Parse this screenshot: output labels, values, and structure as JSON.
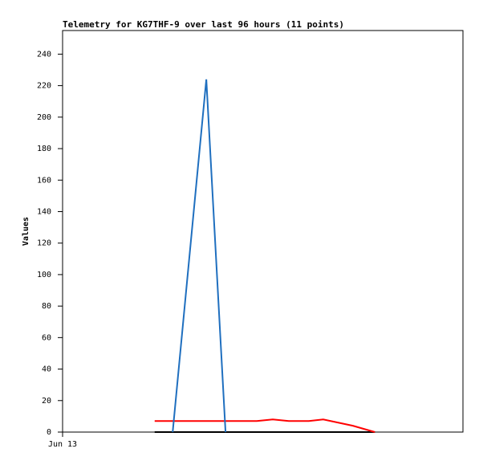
{
  "chart_data": {
    "type": "line",
    "title": "Telemetry for KG7THF-9 over last 96 hours (11 points)",
    "y_label": "Values",
    "x": [
      23.0,
      27.5,
      35.9,
      40.7,
      48.5,
      52.5,
      56.5,
      61.5,
      65.1,
      72.5,
      78.0
    ],
    "xlim": [
      0,
      100
    ],
    "xticks": [
      {
        "value": 0,
        "label": "Jun 13"
      }
    ],
    "ylim": [
      0,
      255
    ],
    "yticks": [
      0,
      20,
      40,
      60,
      80,
      100,
      120,
      140,
      160,
      180,
      200,
      220,
      240
    ],
    "grid": false,
    "series": [
      {
        "color": "#000000",
        "values": [
          0,
          0,
          0,
          0,
          0,
          0,
          0,
          0,
          0,
          0,
          0
        ]
      },
      {
        "color": "#ff0000",
        "values": [
          7,
          7,
          7,
          7,
          7,
          8,
          7,
          7,
          8,
          4,
          0
        ]
      },
      {
        "color": "#1f6fbf",
        "values": [
          null,
          0,
          224,
          0,
          null,
          null,
          null,
          null,
          null,
          null,
          null
        ]
      }
    ]
  }
}
